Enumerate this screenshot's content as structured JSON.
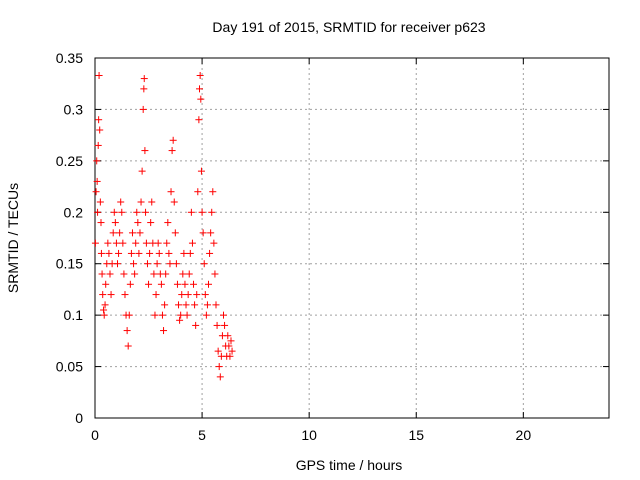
{
  "chart_data": {
    "type": "scatter",
    "title": "Day 191 of 2015, SRMTID for receiver p623",
    "xlabel": "GPS time / hours",
    "ylabel": "SRMTID / TECUs",
    "xlim": [
      0,
      24
    ],
    "ylim": [
      0,
      0.35
    ],
    "xticks": [
      0,
      5,
      10,
      15,
      20
    ],
    "yticks": [
      0,
      0.05,
      0.1,
      0.15,
      0.2,
      0.25,
      0.3,
      0.35
    ],
    "xtick_labels": [
      "0",
      "5",
      "10",
      "15",
      "20"
    ],
    "ytick_labels": [
      "0",
      "0.05",
      "0.1",
      "0.15",
      "0.2",
      "0.25",
      "0.3",
      "0.35"
    ],
    "grid": true,
    "marker": "+",
    "color": "#ff0000",
    "series": [
      {
        "name": "SRMTID",
        "points": [
          [
            0.02,
            0.17
          ],
          [
            0.05,
            0.22
          ],
          [
            0.08,
            0.25
          ],
          [
            0.1,
            0.23
          ],
          [
            0.12,
            0.2
          ],
          [
            0.15,
            0.265
          ],
          [
            0.17,
            0.29
          ],
          [
            0.19,
            0.333
          ],
          [
            0.22,
            0.28
          ],
          [
            0.25,
            0.21
          ],
          [
            0.28,
            0.19
          ],
          [
            0.3,
            0.16
          ],
          [
            0.33,
            0.14
          ],
          [
            0.36,
            0.12
          ],
          [
            0.4,
            0.105
          ],
          [
            0.43,
            0.1
          ],
          [
            0.47,
            0.11
          ],
          [
            0.5,
            0.13
          ],
          [
            0.55,
            0.15
          ],
          [
            0.6,
            0.17
          ],
          [
            0.65,
            0.16
          ],
          [
            0.7,
            0.14
          ],
          [
            0.75,
            0.12
          ],
          [
            0.8,
            0.15
          ],
          [
            0.85,
            0.18
          ],
          [
            0.9,
            0.2
          ],
          [
            0.95,
            0.19
          ],
          [
            1.0,
            0.17
          ],
          [
            1.05,
            0.15
          ],
          [
            1.1,
            0.16
          ],
          [
            1.15,
            0.18
          ],
          [
            1.2,
            0.21
          ],
          [
            1.25,
            0.2
          ],
          [
            1.3,
            0.17
          ],
          [
            1.35,
            0.14
          ],
          [
            1.4,
            0.12
          ],
          [
            1.45,
            0.1
          ],
          [
            1.5,
            0.085
          ],
          [
            1.55,
            0.07
          ],
          [
            1.6,
            0.1
          ],
          [
            1.65,
            0.13
          ],
          [
            1.7,
            0.16
          ],
          [
            1.75,
            0.18
          ],
          [
            1.8,
            0.15
          ],
          [
            1.85,
            0.14
          ],
          [
            1.9,
            0.17
          ],
          [
            1.95,
            0.2
          ],
          [
            2.0,
            0.19
          ],
          [
            2.05,
            0.16
          ],
          [
            2.1,
            0.18
          ],
          [
            2.15,
            0.21
          ],
          [
            2.2,
            0.24
          ],
          [
            2.25,
            0.3
          ],
          [
            2.28,
            0.32
          ],
          [
            2.3,
            0.33
          ],
          [
            2.33,
            0.26
          ],
          [
            2.36,
            0.2
          ],
          [
            2.4,
            0.17
          ],
          [
            2.45,
            0.15
          ],
          [
            2.5,
            0.13
          ],
          [
            2.55,
            0.16
          ],
          [
            2.6,
            0.19
          ],
          [
            2.65,
            0.21
          ],
          [
            2.7,
            0.17
          ],
          [
            2.75,
            0.14
          ],
          [
            2.8,
            0.1
          ],
          [
            2.85,
            0.12
          ],
          [
            2.9,
            0.15
          ],
          [
            2.95,
            0.17
          ],
          [
            3.0,
            0.16
          ],
          [
            3.05,
            0.14
          ],
          [
            3.1,
            0.13
          ],
          [
            3.15,
            0.1
          ],
          [
            3.2,
            0.085
          ],
          [
            3.25,
            0.11
          ],
          [
            3.3,
            0.14
          ],
          [
            3.35,
            0.17
          ],
          [
            3.4,
            0.19
          ],
          [
            3.45,
            0.16
          ],
          [
            3.5,
            0.15
          ],
          [
            3.55,
            0.22
          ],
          [
            3.6,
            0.26
          ],
          [
            3.65,
            0.27
          ],
          [
            3.7,
            0.21
          ],
          [
            3.75,
            0.18
          ],
          [
            3.8,
            0.15
          ],
          [
            3.85,
            0.13
          ],
          [
            3.9,
            0.11
          ],
          [
            3.95,
            0.095
          ],
          [
            4.0,
            0.1
          ],
          [
            4.05,
            0.12
          ],
          [
            4.1,
            0.14
          ],
          [
            4.15,
            0.16
          ],
          [
            4.2,
            0.13
          ],
          [
            4.25,
            0.11
          ],
          [
            4.3,
            0.1
          ],
          [
            4.35,
            0.12
          ],
          [
            4.4,
            0.14
          ],
          [
            4.45,
            0.16
          ],
          [
            4.5,
            0.2
          ],
          [
            4.55,
            0.17
          ],
          [
            4.6,
            0.13
          ],
          [
            4.65,
            0.11
          ],
          [
            4.7,
            0.09
          ],
          [
            4.75,
            0.12
          ],
          [
            4.8,
            0.22
          ],
          [
            4.85,
            0.29
          ],
          [
            4.88,
            0.32
          ],
          [
            4.91,
            0.333
          ],
          [
            4.94,
            0.31
          ],
          [
            4.97,
            0.24
          ],
          [
            5.0,
            0.2
          ],
          [
            5.05,
            0.18
          ],
          [
            5.1,
            0.15
          ],
          [
            5.15,
            0.12
          ],
          [
            5.2,
            0.1
          ],
          [
            5.25,
            0.11
          ],
          [
            5.3,
            0.13
          ],
          [
            5.35,
            0.16
          ],
          [
            5.4,
            0.18
          ],
          [
            5.45,
            0.2
          ],
          [
            5.5,
            0.22
          ],
          [
            5.55,
            0.17
          ],
          [
            5.6,
            0.14
          ],
          [
            5.65,
            0.11
          ],
          [
            5.7,
            0.09
          ],
          [
            5.75,
            0.065
          ],
          [
            5.8,
            0.05
          ],
          [
            5.85,
            0.04
          ],
          [
            5.9,
            0.06
          ],
          [
            5.95,
            0.08
          ],
          [
            6.0,
            0.1
          ],
          [
            6.05,
            0.09
          ],
          [
            6.1,
            0.07
          ],
          [
            6.15,
            0.06
          ],
          [
            6.2,
            0.08
          ],
          [
            6.25,
            0.07
          ],
          [
            6.3,
            0.06
          ],
          [
            6.35,
            0.075
          ],
          [
            6.4,
            0.065
          ]
        ]
      }
    ]
  }
}
